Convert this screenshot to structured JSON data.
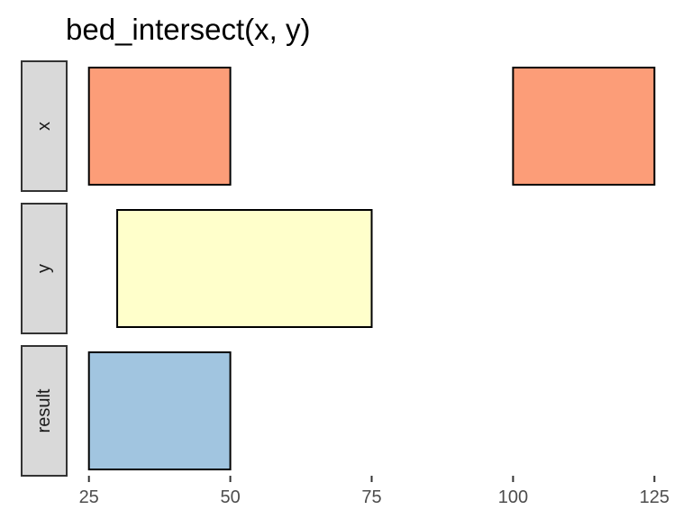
{
  "chart_data": {
    "type": "interval",
    "title": "bed_intersect(x, y)",
    "xlabel": "",
    "ylabel": "",
    "xlim": [
      22.5,
      127.5
    ],
    "x_ticks": [
      25,
      50,
      75,
      100,
      125
    ],
    "x_tick_labels": [
      "25",
      "50",
      "75",
      "100",
      "125"
    ],
    "grid": false,
    "legend": "none",
    "facets": [
      {
        "label": "x",
        "color": "#FC9D78",
        "intervals": [
          {
            "start": 25,
            "end": 50
          },
          {
            "start": 100,
            "end": 125
          }
        ]
      },
      {
        "label": "y",
        "color": "#FFFFCB",
        "intervals": [
          {
            "start": 30,
            "end": 75
          }
        ]
      },
      {
        "label": "result",
        "color": "#A1C5E0",
        "intervals": [
          {
            "start": 25,
            "end": 50
          }
        ]
      }
    ]
  }
}
